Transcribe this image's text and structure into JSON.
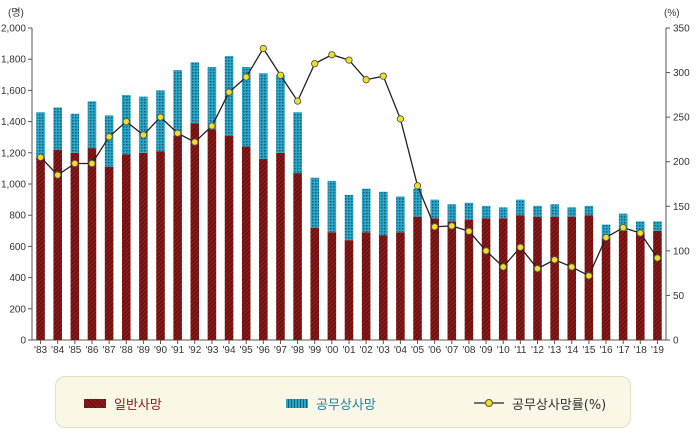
{
  "chart_data": {
    "type": "bar+line",
    "left_axis": {
      "unit": "(명)",
      "ylim": [
        0,
        2000
      ],
      "ticks": [
        "0",
        "200",
        "400",
        "600",
        "800",
        "1,000",
        "1,200",
        "1,400",
        "1,600",
        "1,800",
        "2,000"
      ]
    },
    "right_axis": {
      "unit": "(%)",
      "ylim": [
        0,
        350
      ],
      "ticks": [
        "0",
        "50",
        "100",
        "150",
        "200",
        "250",
        "300",
        "350"
      ]
    },
    "categories": [
      "'83",
      "'84",
      "'85",
      "'86",
      "'87",
      "'88",
      "'89",
      "'90",
      "'91",
      "'92",
      "'93",
      "'94",
      "'95",
      "'96",
      "'97",
      "'98",
      "'99",
      "'00",
      "'01",
      "'02",
      "'03",
      "'04",
      "'05",
      "'06",
      "'07",
      "'08",
      "'09",
      "'10",
      "'11",
      "'12",
      "'13",
      "'14",
      "'15",
      "'16",
      "'17",
      "'18",
      "'19"
    ],
    "series": [
      {
        "name": "일반사망",
        "kind": "stacked-bar",
        "color": "#8b1a1a",
        "values": [
          1170,
          1220,
          1200,
          1230,
          1110,
          1190,
          1200,
          1210,
          1310,
          1390,
          1350,
          1310,
          1240,
          1160,
          1200,
          1070,
          720,
          690,
          640,
          690,
          670,
          690,
          790,
          780,
          760,
          770,
          780,
          780,
          800,
          790,
          790,
          790,
          800,
          650,
          700,
          690,
          700
        ]
      },
      {
        "name": "공무상사망",
        "kind": "stacked-bar",
        "color": "#1f8fb0",
        "values": [
          290,
          270,
          250,
          300,
          330,
          380,
          360,
          390,
          420,
          390,
          400,
          510,
          510,
          550,
          500,
          390,
          320,
          330,
          290,
          280,
          280,
          230,
          180,
          120,
          110,
          110,
          80,
          70,
          100,
          70,
          80,
          60,
          60,
          90,
          110,
          70,
          60
        ]
      },
      {
        "name": "공무상사망률(%)",
        "kind": "line",
        "axis": "right",
        "color": "#222222",
        "marker": "#f0e020",
        "values": [
          205,
          185,
          198,
          198,
          228,
          245,
          230,
          250,
          232,
          222,
          240,
          278,
          295,
          327,
          297,
          268,
          310,
          320,
          314,
          292,
          296,
          248,
          173,
          127,
          128,
          122,
          100,
          82,
          104,
          80,
          90,
          82,
          72,
          115,
          126,
          120,
          92
        ]
      }
    ]
  }
}
